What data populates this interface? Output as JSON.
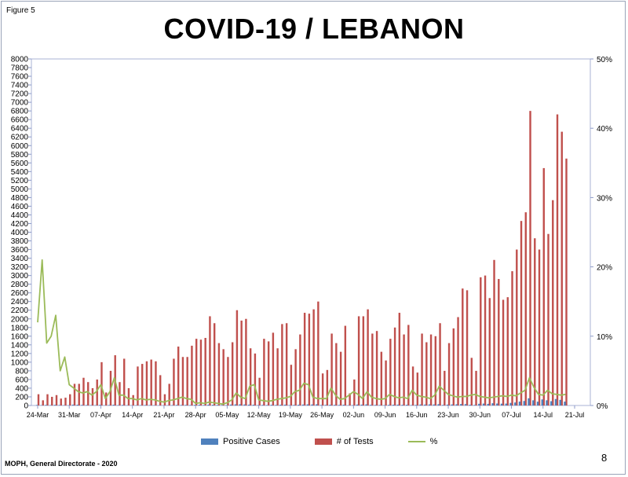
{
  "figure_label": "Figure 5",
  "title": "COVID-19 / LEBANON",
  "footer": "MOPH, General Directorate  - 2020",
  "page_number": "8",
  "legend": {
    "positive": "Positive Cases",
    "tests": "# of Tests",
    "pct": "%"
  },
  "colors": {
    "positive": "#4f81bd",
    "tests": "#c0504d",
    "pct": "#9bbb59",
    "axis": "#8d9bc9",
    "plot_border": "#aab3d6"
  },
  "chart_data": {
    "type": "bar",
    "title": "COVID-19 / LEBANON",
    "start_date": "2020-03-24",
    "x_tick_labels": [
      "24-Mar",
      "31-Mar",
      "07-Apr",
      "14-Apr",
      "21-Apr",
      "28-Apr",
      "05-May",
      "12-May",
      "19-May",
      "26-May",
      "02-Jun",
      "09-Jun",
      "16-Jun",
      "23-Jun",
      "30-Jun",
      "07-Jul",
      "14-Jul",
      "21-Jul"
    ],
    "y_left": {
      "min": 0,
      "max": 8000,
      "step": 200
    },
    "y_right": {
      "min": 0,
      "max": 50,
      "step": 10,
      "format": "percent"
    },
    "grid": false,
    "legend_position": "bottom",
    "series": [
      {
        "name": "# of Tests",
        "axis": "left",
        "kind": "bar",
        "values": [
          260,
          120,
          260,
          200,
          240,
          160,
          180,
          260,
          500,
          500,
          640,
          540,
          400,
          600,
          1000,
          300,
          800,
          1160,
          540,
          1080,
          400,
          240,
          900,
          960,
          1020,
          1060,
          1020,
          700,
          260,
          500,
          1080,
          1360,
          1120,
          1120,
          1380,
          1540,
          1520,
          1560,
          2060,
          1900,
          1440,
          1300,
          1120,
          1460,
          2200,
          1960,
          2000,
          1320,
          1200,
          640,
          1540,
          1480,
          1680,
          1320,
          1880,
          1900,
          940,
          1300,
          1640,
          2140,
          2120,
          2220,
          2400,
          740,
          820,
          1660,
          1440,
          1240,
          1840,
          280,
          600,
          2060,
          2060,
          2220,
          1660,
          1720,
          1240,
          1040,
          1540,
          1800,
          2140,
          1640,
          1860,
          900,
          760,
          1660,
          1460,
          1640,
          1600,
          1900,
          800,
          1440,
          1780,
          2040,
          2700,
          2660,
          1100,
          800,
          2960,
          3000,
          2480,
          3360,
          2920,
          2440,
          2500,
          3100,
          3600,
          4260,
          4460,
          6800,
          3860,
          3600,
          5480,
          3960,
          4740,
          6720,
          6320,
          5700
        ]
      },
      {
        "name": "Positive Cases",
        "axis": "left",
        "kind": "bar",
        "values": [
          12,
          8,
          14,
          10,
          16,
          12,
          8,
          6,
          20,
          18,
          14,
          12,
          10,
          8,
          16,
          6,
          12,
          18,
          10,
          14,
          6,
          4,
          8,
          10,
          12,
          10,
          8,
          6,
          4,
          6,
          10,
          14,
          12,
          14,
          12,
          16,
          18,
          12,
          20,
          18,
          14,
          12,
          10,
          22,
          26,
          28,
          24,
          20,
          18,
          10,
          14,
          12,
          16,
          14,
          18,
          20,
          10,
          14,
          18,
          22,
          26,
          24,
          28,
          12,
          14,
          18,
          16,
          14,
          18,
          6,
          10,
          22,
          20,
          26,
          16,
          14,
          12,
          10,
          16,
          18,
          20,
          16,
          18,
          10,
          14,
          24,
          22,
          26,
          24,
          30,
          14,
          20,
          24,
          28,
          34,
          32,
          18,
          14,
          40,
          44,
          38,
          52,
          46,
          42,
          44,
          60,
          70,
          90,
          104,
          166,
          120,
          88,
          140,
          120,
          100,
          150,
          130,
          90
        ]
      },
      {
        "name": "%",
        "axis": "right",
        "kind": "line",
        "values": [
          12,
          21,
          9,
          10,
          13,
          5,
          7,
          3,
          2.5,
          2,
          1.8,
          2,
          1.5,
          2,
          3,
          1,
          2,
          4,
          1.5,
          1.5,
          1,
          1,
          0.8,
          1,
          0.8,
          0.9,
          0.8,
          0.6,
          0.5,
          0.7,
          0.8,
          1,
          1.2,
          1,
          0.9,
          0.3,
          0.4,
          0.3,
          0.5,
          0.4,
          0.3,
          0.2,
          0.4,
          0.8,
          1.8,
          1.2,
          1,
          2.8,
          3,
          0.8,
          0.7,
          0.6,
          0.7,
          0.9,
          1,
          1.1,
          1.3,
          2,
          2.2,
          3.2,
          3,
          1.2,
          1,
          1,
          1,
          2.5,
          1.5,
          0.9,
          1,
          1.5,
          2,
          1.6,
          1,
          2,
          1.2,
          1,
          0.9,
          1,
          1.6,
          1.3,
          1.1,
          1.2,
          1,
          2.2,
          1.5,
          1.3,
          1.2,
          1,
          1.5,
          2.8,
          2.2,
          1.6,
          1.4,
          1.2,
          1.3,
          1.3,
          1.5,
          1.6,
          1.3,
          1.2,
          1.1,
          1.2,
          1.3,
          1.4,
          1.3,
          1.5,
          1.4,
          1.8,
          2.2,
          4,
          2.6,
          1.6,
          1.5,
          2.2,
          1.7,
          1.6,
          1.5,
          1.6
        ]
      }
    ]
  }
}
